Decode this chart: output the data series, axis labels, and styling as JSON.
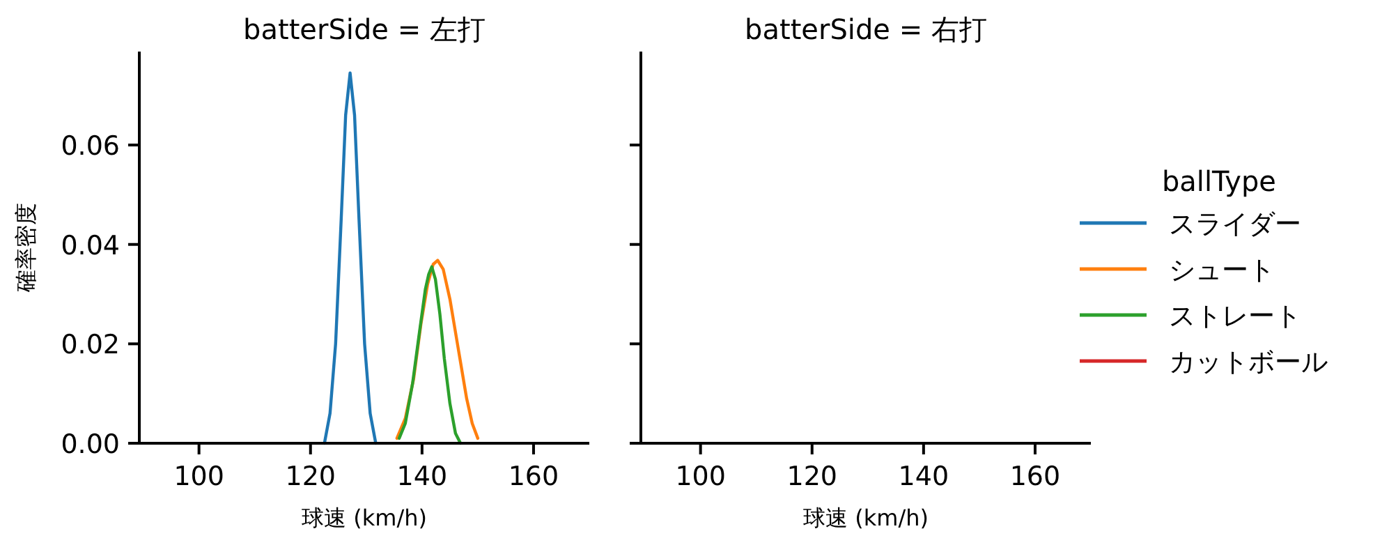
{
  "chart_data": [
    {
      "type": "line",
      "title": "batterSide = 左打",
      "xlabel": "球速 (km/h)",
      "ylabel": "確率密度",
      "legend_title": "ballType",
      "legend": "right",
      "xlim": [
        89.3,
        170
      ],
      "ylim": [
        0,
        0.0788
      ],
      "xticks": [
        100,
        120,
        140,
        160
      ],
      "yticks": [
        {
          "value": 0,
          "label": "0.00"
        },
        {
          "value": 0.02,
          "label": "0.02"
        },
        {
          "value": 0.04,
          "label": "0.04"
        },
        {
          "value": 0.06,
          "label": "0.06"
        }
      ],
      "series": [
        {
          "name": "スライダー",
          "color": "#1f77b4",
          "x": [
            122.5,
            123.5,
            124.5,
            125.5,
            126.3,
            127.1,
            127.9,
            128.7,
            129.7,
            130.7,
            131.7
          ],
          "values": [
            0,
            0.006,
            0.02,
            0.045,
            0.066,
            0.0745,
            0.066,
            0.045,
            0.02,
            0.006,
            0
          ]
        },
        {
          "name": "シュート",
          "color": "#ff7f0e",
          "x": [
            135.5,
            137,
            138.5,
            139.8,
            141,
            142,
            142.8,
            143.8,
            145,
            146.5,
            148,
            149,
            150
          ],
          "values": [
            0.001,
            0.005,
            0.013,
            0.024,
            0.032,
            0.036,
            0.0368,
            0.035,
            0.029,
            0.019,
            0.009,
            0.004,
            0.001
          ]
        },
        {
          "name": "ストレート",
          "color": "#2ca02c",
          "x": [
            135.9,
            137,
            138.3,
            139.5,
            140.6,
            141.2,
            141.75,
            142.4,
            143.2,
            144,
            145,
            146,
            146.9
          ],
          "values": [
            0.001,
            0.004,
            0.012,
            0.022,
            0.031,
            0.034,
            0.0355,
            0.033,
            0.026,
            0.017,
            0.008,
            0.002,
            0
          ]
        },
        {
          "name": "カットボール",
          "color": "#d62728"
        }
      ]
    },
    {
      "type": "line",
      "title": "batterSide = 右打",
      "xlabel": "球速 (km/h)",
      "tick_labels": "x",
      "xlim": [
        89.3,
        170
      ],
      "ylim": [
        0,
        0.0788
      ],
      "xticks": [
        100,
        120,
        140,
        160
      ],
      "yticks": [
        {
          "value": 0,
          "label": null
        },
        {
          "value": 0.02,
          "label": null
        },
        {
          "value": 0.04,
          "label": null
        },
        {
          "value": 0.06,
          "label": null
        }
      ]
    }
  ]
}
